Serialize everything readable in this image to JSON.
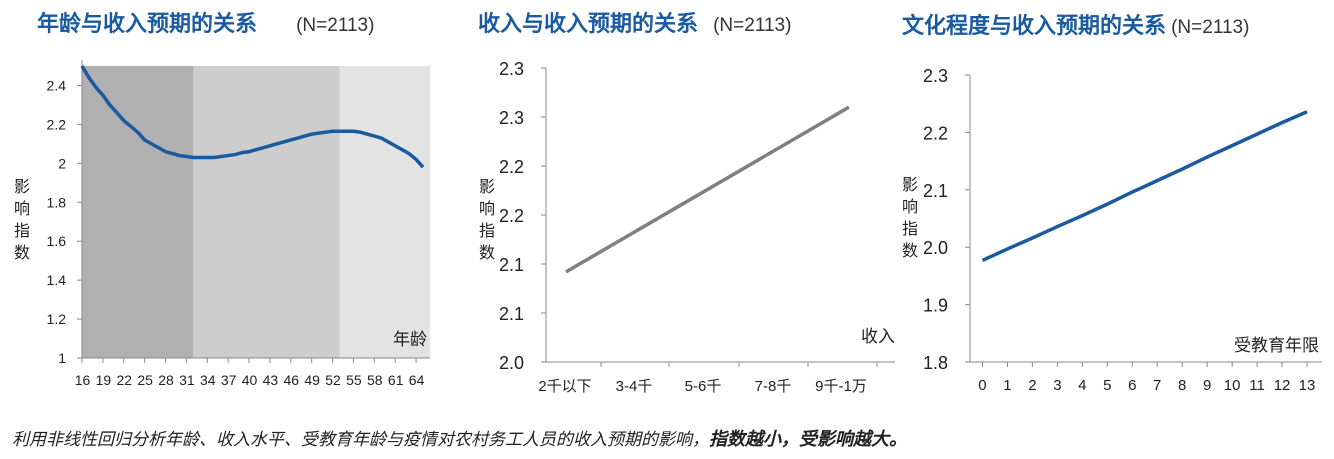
{
  "footer": {
    "text": "利用非线性回归分析年龄、收入水平、受教育年龄与疫情对农村务工人员的收入预期的影响，",
    "emphasis": "指数越小，受影响越大。"
  },
  "colors": {
    "title": "#1a5aa0",
    "blue_line": "#1a5aa0",
    "gray_line": "#808080",
    "band_dark": "#b0b0b0",
    "band_mid": "#cdcdcd",
    "band_light": "#e3e3e3"
  },
  "chart_data": [
    {
      "type": "line",
      "title": "年龄与收入预期的关系",
      "subtitle": "(N=2113)",
      "xlabel": "年龄",
      "ylabel": "影响指数",
      "x_ticks": [
        "16",
        "19",
        "22",
        "25",
        "28",
        "31",
        "34",
        "37",
        "40",
        "43",
        "46",
        "49",
        "52",
        "55",
        "58",
        "61",
        "64"
      ],
      "y_ticks": [
        "1",
        "1.2",
        "1.4",
        "1.6",
        "1.8",
        "2",
        "2.2",
        "2.4"
      ],
      "ylim": [
        1,
        2.5
      ],
      "xlim": [
        16,
        66
      ],
      "background_bands": [
        {
          "from": 16,
          "to": 32,
          "color": "band_dark"
        },
        {
          "from": 32,
          "to": 53,
          "color": "band_mid"
        },
        {
          "from": 53,
          "to": 66,
          "color": "band_light"
        }
      ],
      "series": [
        {
          "color": "blue_line",
          "x": [
            16,
            17,
            18,
            19,
            20,
            21,
            22,
            23,
            24,
            25,
            26,
            27,
            28,
            29,
            30,
            31,
            32,
            33,
            34,
            35,
            36,
            37,
            38,
            39,
            40,
            41,
            42,
            43,
            44,
            45,
            46,
            47,
            48,
            49,
            50,
            51,
            52,
            53,
            54,
            55,
            56,
            57,
            58,
            59,
            60,
            61,
            62,
            63,
            64,
            65
          ],
          "y": [
            2.5,
            2.44,
            2.39,
            2.35,
            2.3,
            2.26,
            2.22,
            2.19,
            2.16,
            2.12,
            2.1,
            2.08,
            2.06,
            2.05,
            2.04,
            2.035,
            2.03,
            2.03,
            2.03,
            2.03,
            2.035,
            2.04,
            2.045,
            2.055,
            2.06,
            2.07,
            2.08,
            2.09,
            2.1,
            2.11,
            2.12,
            2.13,
            2.14,
            2.15,
            2.155,
            2.16,
            2.165,
            2.165,
            2.165,
            2.165,
            2.16,
            2.15,
            2.14,
            2.13,
            2.11,
            2.09,
            2.07,
            2.05,
            2.02,
            1.98
          ]
        }
      ]
    },
    {
      "type": "line",
      "title": "收入与收入预期的关系",
      "subtitle": "(N=2113)",
      "xlabel": "收入",
      "ylabel": "影响指数",
      "categories": [
        "2千以下",
        "3-4千",
        "5-6千",
        "7-8千",
        "9千-1万"
      ],
      "y_ticks": [
        "2.0",
        "2.1",
        "2.1",
        "2.2",
        "2.2",
        "2.3",
        "2.3"
      ],
      "ylim": [
        2.0,
        2.3
      ],
      "series": [
        {
          "color": "gray_line",
          "x": [
            0,
            4.1
          ],
          "y": [
            2.092,
            2.26
          ]
        }
      ]
    },
    {
      "type": "line",
      "title": "文化程度与收入预期的关系",
      "subtitle": "(N=2113)",
      "xlabel": "受教育年限",
      "ylabel": "影响指数",
      "x_ticks": [
        "0",
        "1",
        "2",
        "3",
        "4",
        "5",
        "6",
        "7",
        "8",
        "9",
        "10",
        "11",
        "12",
        "13"
      ],
      "y_ticks": [
        "1.8",
        "1.9",
        "2.0",
        "2.1",
        "2.2",
        "2.3"
      ],
      "ylim": [
        1.8,
        2.3
      ],
      "xlim": [
        -0.5,
        13.6
      ],
      "series": [
        {
          "color": "blue_line",
          "x": [
            0,
            1,
            2,
            3,
            4,
            5,
            6,
            7,
            8,
            9,
            10,
            11,
            12,
            13
          ],
          "y": [
            1.977,
            1.997,
            2.016,
            2.036,
            2.055,
            2.075,
            2.096,
            2.116,
            2.136,
            2.157,
            2.177,
            2.197,
            2.217,
            2.236
          ]
        }
      ]
    }
  ]
}
